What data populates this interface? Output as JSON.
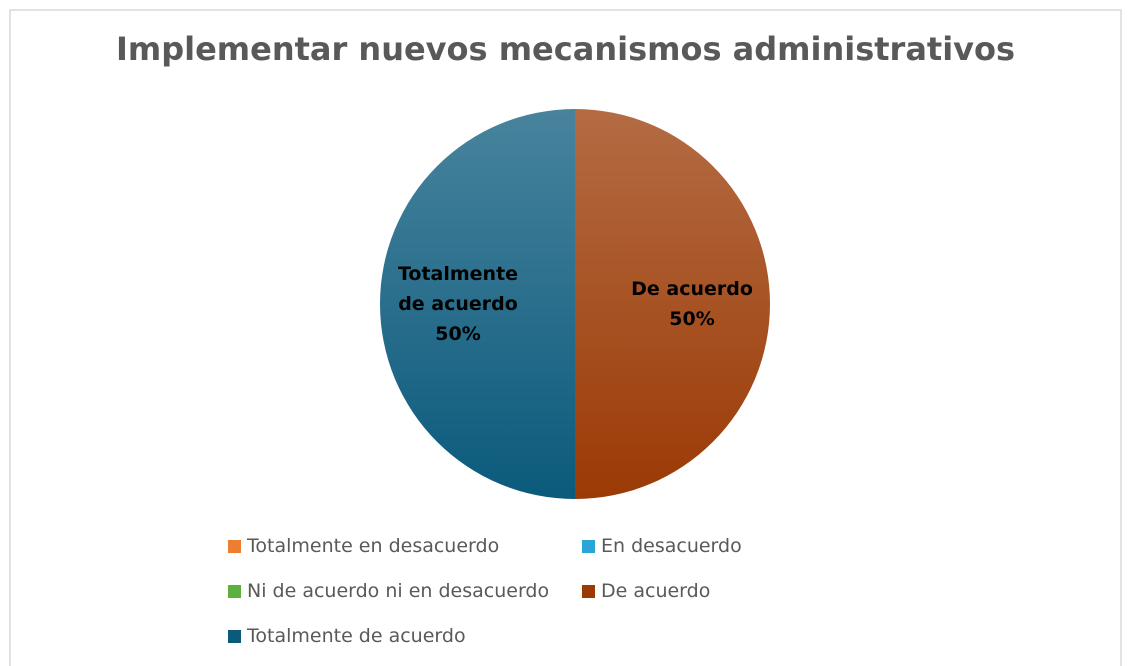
{
  "chart_data": {
    "type": "pie",
    "title": "Implementar nuevos mecanismos administrativos",
    "categories": [
      "Totalmente en desacuerdo",
      "En desacuerdo",
      "Ni de acuerdo ni en desacuerdo",
      "De acuerdo",
      "Totalmente de acuerdo"
    ],
    "values": [
      0,
      0,
      0,
      50,
      50
    ],
    "value_labels": [
      null,
      null,
      null,
      "50%",
      "50%"
    ],
    "colors": [
      "#ed7d31",
      "#2aa5d8",
      "#5bb040",
      "#9b3a05",
      "#0b5a7c"
    ],
    "legend": "bottom"
  }
}
